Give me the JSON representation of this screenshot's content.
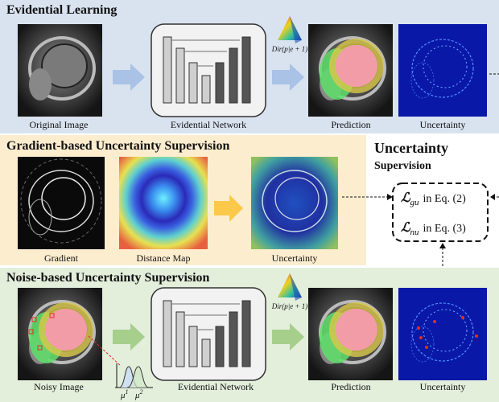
{
  "panels": [
    {
      "title": "Evidential Learning",
      "labels": [
        "Original Image",
        "Evidential Network",
        "Prediction",
        "Uncertainty"
      ],
      "dirichlet": "Dir(p|e + 1)"
    },
    {
      "title": "Gradient-based Uncertainty Supervision",
      "labels": [
        "Gradient",
        "Distance Map",
        "Uncertainty"
      ]
    },
    {
      "title": "Noise-based Uncertainty Supervision",
      "labels": [
        "Noisy Image",
        "Evidential Network",
        "Prediction",
        "Uncertainty"
      ],
      "dirichlet": "Dir(p|e + 1)",
      "noise_labels": [
        {
          "symbol": "μ",
          "superscript": "1"
        },
        {
          "symbol": "μ",
          "superscript": "2"
        }
      ]
    }
  ],
  "supervision": {
    "title": "Uncertainty",
    "subtitle": "Supervision",
    "terms": [
      {
        "symbol": "ℒ",
        "subscript": "gu",
        "ref": "in Eq. (2)"
      },
      {
        "symbol": "ℒ",
        "subscript": "nu",
        "ref": "in Eq. (3)"
      }
    ]
  }
}
